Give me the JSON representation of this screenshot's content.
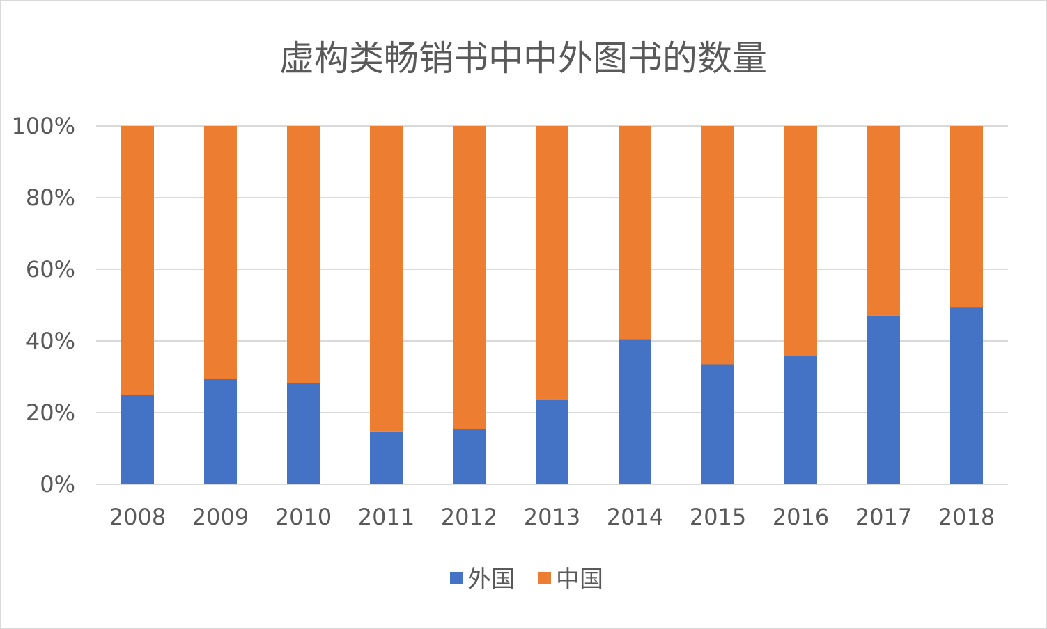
{
  "chart_data": {
    "type": "bar",
    "stacked": true,
    "percent_stacked": true,
    "title": "虚构类畅销书中中外图书的数量",
    "categories": [
      "2008",
      "2009",
      "2010",
      "2011",
      "2012",
      "2013",
      "2014",
      "2015",
      "2016",
      "2017",
      "2018"
    ],
    "series": [
      {
        "name": "外国",
        "color": "#4472c4",
        "values": [
          25,
          29.5,
          28.2,
          14.6,
          15.4,
          23.5,
          40.5,
          33.5,
          35.9,
          47,
          49.5
        ]
      },
      {
        "name": "中国",
        "color": "#ed7d31",
        "values": [
          75,
          70.5,
          71.8,
          85.4,
          84.6,
          76.5,
          59.5,
          66.5,
          64.1,
          53,
          50.5
        ]
      }
    ],
    "ylim": [
      0,
      100
    ],
    "y_ticks": [
      "0%",
      "20%",
      "40%",
      "60%",
      "80%",
      "100%"
    ],
    "xlabel": "",
    "ylabel": "",
    "grid": true,
    "legend": "bottom"
  }
}
